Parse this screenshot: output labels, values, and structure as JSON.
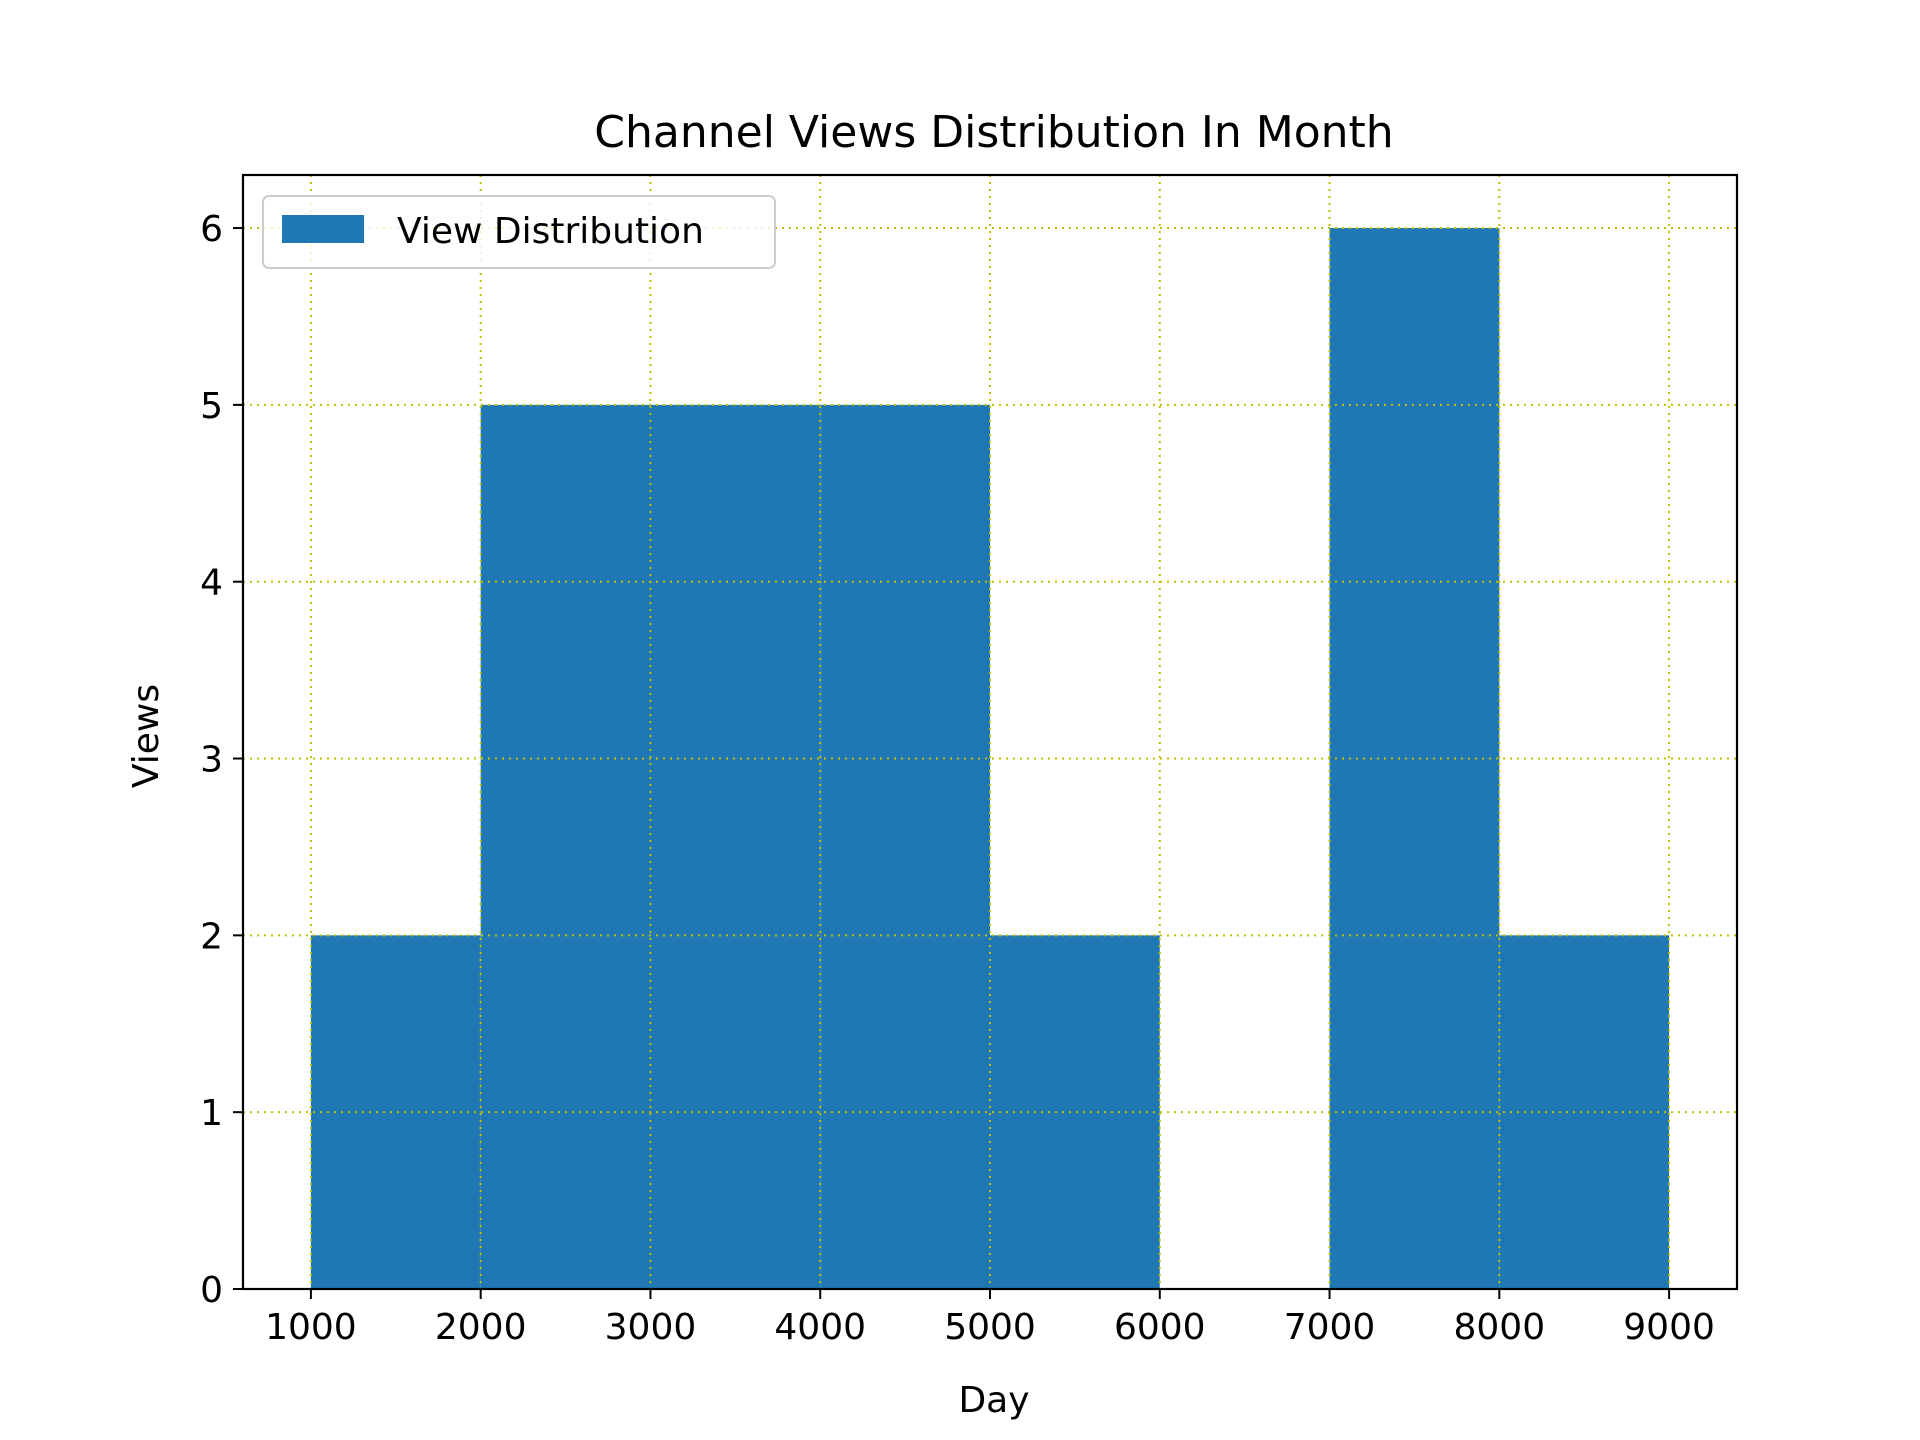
{
  "chart_data": {
    "type": "bar",
    "title": "Channel Views Distribution In Month",
    "xlabel": "Day",
    "ylabel": "Views",
    "bins": [
      {
        "start": 1000,
        "end": 2000,
        "value": 2
      },
      {
        "start": 2000,
        "end": 3000,
        "value": 5
      },
      {
        "start": 3000,
        "end": 4000,
        "value": 5
      },
      {
        "start": 4000,
        "end": 5000,
        "value": 5
      },
      {
        "start": 5000,
        "end": 6000,
        "value": 2
      },
      {
        "start": 6000,
        "end": 7000,
        "value": 0
      },
      {
        "start": 7000,
        "end": 8000,
        "value": 6
      },
      {
        "start": 8000,
        "end": 9000,
        "value": 2
      }
    ],
    "xlim": [
      600,
      9400
    ],
    "ylim": [
      0,
      6.3
    ],
    "xticks": [
      1000,
      2000,
      3000,
      4000,
      5000,
      6000,
      7000,
      8000,
      9000
    ],
    "yticks": [
      0,
      1,
      2,
      3,
      4,
      5,
      6
    ],
    "grid": true,
    "grid_style": "dotted",
    "legend": {
      "label": "View Distribution",
      "position": "upper-left"
    },
    "colors": {
      "bar": "#1f77b4",
      "grid": "#bfbf00",
      "axes": "#000000"
    }
  }
}
